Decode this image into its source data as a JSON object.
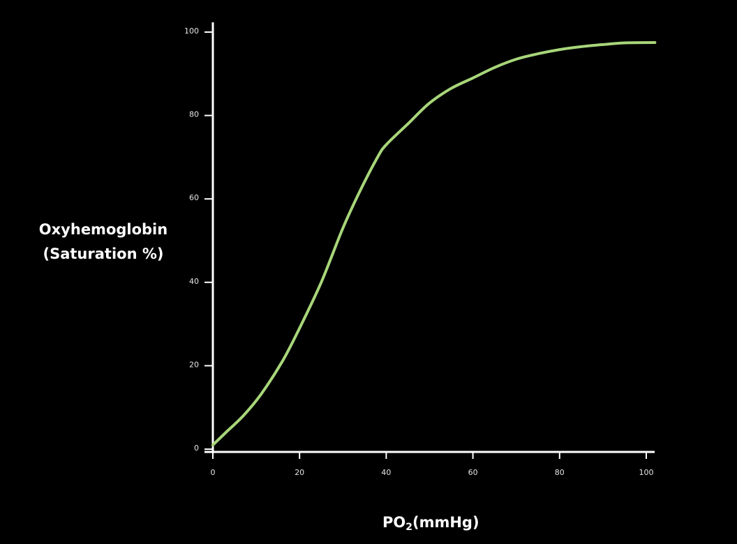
{
  "chart_data": {
    "type": "line",
    "ylabel_line1": "Oxyhemoglobin",
    "ylabel_line2": "(Saturation %)",
    "xlabel_main": "PO",
    "xlabel_sub": "2",
    "xlabel_unit": "(mmHg)",
    "xlim": [
      0,
      102
    ],
    "ylim": [
      0,
      100
    ],
    "xticks": [
      0,
      20,
      40,
      60,
      80,
      100
    ],
    "yticks": [
      0,
      20,
      40,
      60,
      80,
      100
    ],
    "grid": false,
    "series": [
      {
        "color": "#a8d67a",
        "x": [
          0,
          3,
          7,
          11,
          16,
          20,
          25,
          30,
          34,
          38,
          40,
          45,
          50,
          55,
          60,
          65,
          70,
          75,
          80,
          85,
          90,
          95,
          102
        ],
        "y": [
          1,
          4,
          8,
          13,
          21,
          29,
          40,
          53,
          62,
          70,
          73,
          78,
          83,
          86.5,
          89,
          91.5,
          93.5,
          94.8,
          95.8,
          96.5,
          97,
          97.4,
          97.5
        ]
      }
    ]
  }
}
